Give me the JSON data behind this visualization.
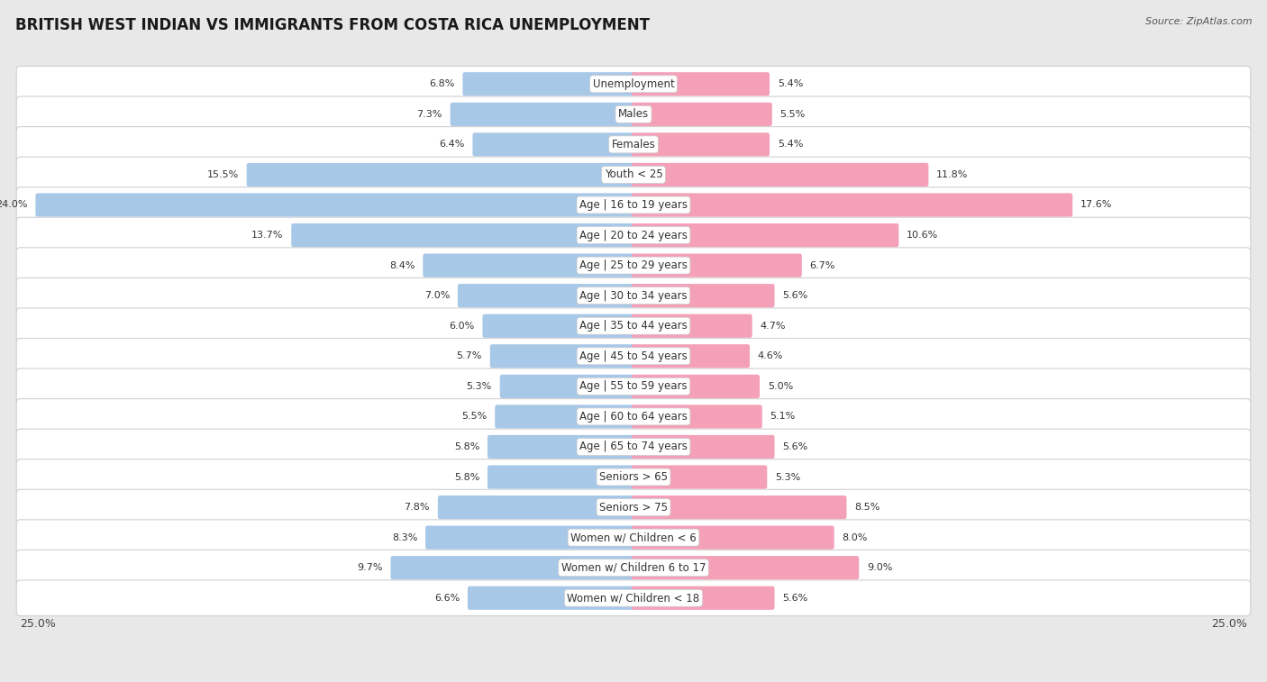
{
  "title": "BRITISH WEST INDIAN VS IMMIGRANTS FROM COSTA RICA UNEMPLOYMENT",
  "source": "Source: ZipAtlas.com",
  "categories": [
    "Unemployment",
    "Males",
    "Females",
    "Youth < 25",
    "Age | 16 to 19 years",
    "Age | 20 to 24 years",
    "Age | 25 to 29 years",
    "Age | 30 to 34 years",
    "Age | 35 to 44 years",
    "Age | 45 to 54 years",
    "Age | 55 to 59 years",
    "Age | 60 to 64 years",
    "Age | 65 to 74 years",
    "Seniors > 65",
    "Seniors > 75",
    "Women w/ Children < 6",
    "Women w/ Children 6 to 17",
    "Women w/ Children < 18"
  ],
  "left_values": [
    6.8,
    7.3,
    6.4,
    15.5,
    24.0,
    13.7,
    8.4,
    7.0,
    6.0,
    5.7,
    5.3,
    5.5,
    5.8,
    5.8,
    7.8,
    8.3,
    9.7,
    6.6
  ],
  "right_values": [
    5.4,
    5.5,
    5.4,
    11.8,
    17.6,
    10.6,
    6.7,
    5.6,
    4.7,
    4.6,
    5.0,
    5.1,
    5.6,
    5.3,
    8.5,
    8.0,
    9.0,
    5.6
  ],
  "left_color": "#a8c8e8",
  "right_color": "#f4a0b8",
  "left_label": "British West Indian",
  "right_label": "Immigrants from Costa Rica",
  "axis_max": 25.0,
  "bg_color": "#e8e8e8",
  "title_fontsize": 12,
  "source_fontsize": 8,
  "label_fontsize": 8.5,
  "value_fontsize": 8
}
